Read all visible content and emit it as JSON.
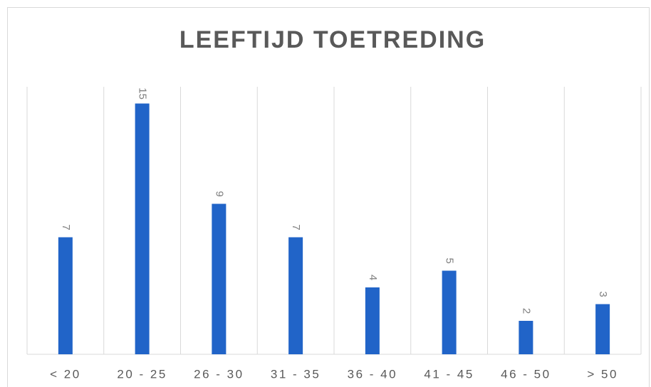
{
  "chart_data": {
    "type": "bar",
    "title": "LEEFTIJD TOETREDING",
    "categories": [
      "< 20",
      "20 - 25",
      "26 - 30",
      "31 - 35",
      "36 - 40",
      "41 - 45",
      "46 - 50",
      "> 50"
    ],
    "values": [
      7,
      15,
      9,
      7,
      4,
      5,
      2,
      3
    ],
    "color": "#2164c8",
    "ylim": [
      0,
      16
    ],
    "grid": true
  }
}
